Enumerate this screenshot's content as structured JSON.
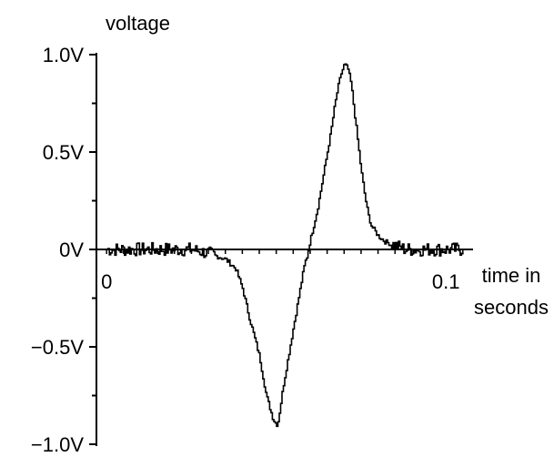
{
  "chart_data": {
    "type": "line",
    "title": "",
    "ylabel": "voltage",
    "xlabel_line1": "time in",
    "xlabel_line2": "seconds",
    "ylim": [
      -1.0,
      1.0
    ],
    "xlim": [
      -0.003,
      0.108
    ],
    "y_ticks": [
      {
        "value": 1.0,
        "label": "1.0V"
      },
      {
        "value": 0.5,
        "label": "0.5V"
      },
      {
        "value": 0.0,
        "label": "0V"
      },
      {
        "value": -0.5,
        "label": "−0.5V"
      },
      {
        "value": -1.0,
        "label": "−1.0V"
      }
    ],
    "x_ticks": [
      {
        "value": 0.0,
        "label": "0"
      },
      {
        "value": 0.1,
        "label": "0.1"
      }
    ],
    "grid": false,
    "colors": {
      "line": "#000000",
      "axis": "#000000"
    },
    "series": [
      {
        "x": [
          0.0,
          0.005,
          0.01,
          0.015,
          0.02,
          0.025,
          0.03,
          0.035,
          0.038,
          0.04,
          0.042,
          0.045,
          0.047,
          0.049,
          0.05,
          0.0505,
          0.052,
          0.054,
          0.056,
          0.058,
          0.06,
          0.062,
          0.064,
          0.066,
          0.067,
          0.068,
          0.069,
          0.07,
          0.071,
          0.072,
          0.073,
          0.074,
          0.075,
          0.076,
          0.077,
          0.078,
          0.08,
          0.082,
          0.085,
          0.088,
          0.09,
          0.092,
          0.095,
          0.1,
          0.105
        ],
        "y": [
          0.0,
          0.0,
          0.0,
          0.0,
          0.0,
          0.0,
          -0.02,
          -0.05,
          -0.1,
          -0.2,
          -0.35,
          -0.55,
          -0.75,
          -0.87,
          -0.9,
          -0.88,
          -0.7,
          -0.5,
          -0.3,
          -0.1,
          0.05,
          0.2,
          0.4,
          0.6,
          0.72,
          0.82,
          0.9,
          0.95,
          0.93,
          0.85,
          0.7,
          0.55,
          0.4,
          0.28,
          0.18,
          0.12,
          0.07,
          0.04,
          0.02,
          0.0,
          0.0,
          0.0,
          0.0,
          0.0,
          0.0
        ]
      }
    ]
  }
}
